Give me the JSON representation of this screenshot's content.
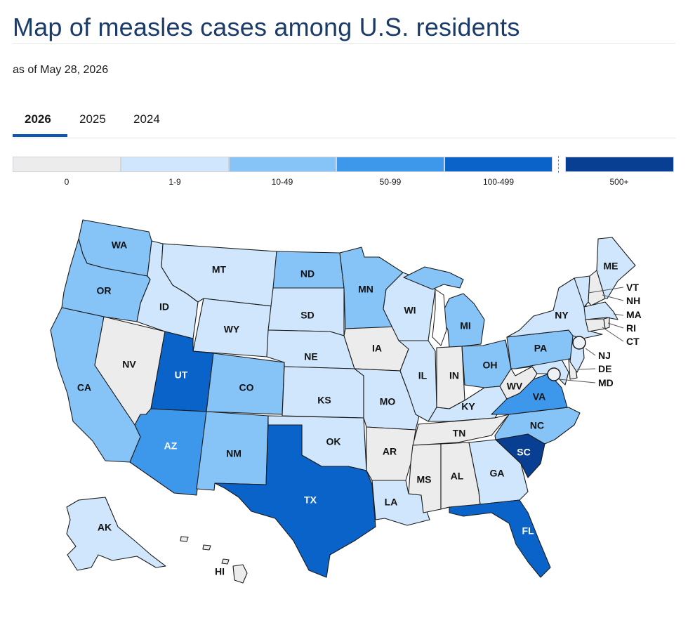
{
  "header": {
    "title": "Map of measles cases among U.S. residents",
    "subtitle": "as of May 28, 2026"
  },
  "tabs": [
    {
      "label": "2026",
      "active": true
    },
    {
      "label": "2025",
      "active": false
    },
    {
      "label": "2024",
      "active": false
    }
  ],
  "legend": [
    {
      "label": "0",
      "color": "#ececec"
    },
    {
      "label": "1-9",
      "color": "#cfe6fc"
    },
    {
      "label": "10-49",
      "color": "#86c3f6"
    },
    {
      "label": "50-99",
      "color": "#3d97ea"
    },
    {
      "label": "100-499",
      "color": "#0a63c8"
    },
    {
      "label": "500+",
      "color": "#083f93"
    }
  ],
  "states": {
    "WA": {
      "label": "WA",
      "bin": 2
    },
    "OR": {
      "label": "OR",
      "bin": 2
    },
    "CA": {
      "label": "CA",
      "bin": 2
    },
    "NV": {
      "label": "NV",
      "bin": 0
    },
    "ID": {
      "label": "ID",
      "bin": 1
    },
    "MT": {
      "label": "MT",
      "bin": 1
    },
    "WY": {
      "label": "WY",
      "bin": 1
    },
    "UT": {
      "label": "UT",
      "bin": 4
    },
    "AZ": {
      "label": "AZ",
      "bin": 3
    },
    "CO": {
      "label": "CO",
      "bin": 2
    },
    "NM": {
      "label": "NM",
      "bin": 2
    },
    "ND": {
      "label": "ND",
      "bin": 2
    },
    "SD": {
      "label": "SD",
      "bin": 1
    },
    "NE": {
      "label": "NE",
      "bin": 1
    },
    "KS": {
      "label": "KS",
      "bin": 1
    },
    "OK": {
      "label": "OK",
      "bin": 1
    },
    "TX": {
      "label": "TX",
      "bin": 4
    },
    "MN": {
      "label": "MN",
      "bin": 2
    },
    "IA": {
      "label": "IA",
      "bin": 0
    },
    "MO": {
      "label": "MO",
      "bin": 1
    },
    "AR": {
      "label": "AR",
      "bin": 0
    },
    "LA": {
      "label": "LA",
      "bin": 1
    },
    "WI": {
      "label": "WI",
      "bin": 1
    },
    "IL": {
      "label": "IL",
      "bin": 1
    },
    "MI": {
      "label": "MI",
      "bin": 2
    },
    "IN": {
      "label": "IN",
      "bin": 0
    },
    "OH": {
      "label": "OH",
      "bin": 2
    },
    "KY": {
      "label": "KY",
      "bin": 1
    },
    "TN": {
      "label": "TN",
      "bin": 0
    },
    "MS": {
      "label": "MS",
      "bin": 0
    },
    "AL": {
      "label": "AL",
      "bin": 0
    },
    "GA": {
      "label": "GA",
      "bin": 1
    },
    "FL": {
      "label": "FL",
      "bin": 4
    },
    "SC": {
      "label": "SC",
      "bin": 5
    },
    "NC": {
      "label": "NC",
      "bin": 2
    },
    "VA": {
      "label": "VA",
      "bin": 3
    },
    "WV": {
      "label": "WV",
      "bin": 0
    },
    "PA": {
      "label": "PA",
      "bin": 2
    },
    "NY": {
      "label": "NY",
      "bin": 1
    },
    "ME": {
      "label": "ME",
      "bin": 1
    },
    "VT": {
      "label": "VT",
      "bin": 1
    },
    "NH": {
      "label": "NH",
      "bin": 0
    },
    "MA": {
      "label": "MA",
      "bin": 1
    },
    "RI": {
      "label": "RI",
      "bin": 0
    },
    "CT": {
      "label": "CT",
      "bin": 0
    },
    "NJ": {
      "label": "NJ",
      "bin": 1
    },
    "DE": {
      "label": "DE",
      "bin": 0
    },
    "MD": {
      "label": "MD",
      "bin": 1
    },
    "AK": {
      "label": "AK",
      "bin": 1
    },
    "HI": {
      "label": "HI",
      "bin": 0
    }
  }
}
